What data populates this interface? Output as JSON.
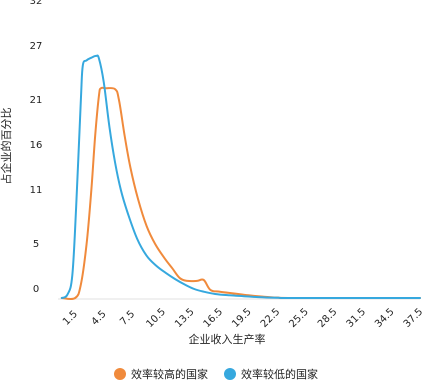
{
  "chart_data": {
    "type": "line",
    "title": "",
    "xlabel": "企业收入生产率",
    "ylabel": "占企业的百分比",
    "x_ticks": [
      "1.5",
      "4.5",
      "7.5",
      "10.5",
      "13.5",
      "16.5",
      "19.5",
      "22.5",
      "25.5",
      "28.5",
      "31.5",
      "34.5",
      "37.5"
    ],
    "y_ticks": [
      "0",
      "5",
      "11",
      "16",
      "21",
      "27",
      "32"
    ],
    "xlim": [
      0,
      38
    ],
    "ylim": [
      0,
      32
    ],
    "grid": false,
    "legend_position": "bottom",
    "series": [
      {
        "name": "效率较高的国家",
        "color": "#f08a3c",
        "points": [
          [
            0.4,
            0
          ],
          [
            1.8,
            0
          ],
          [
            2.4,
            1.5
          ],
          [
            3.0,
            6
          ],
          [
            3.5,
            12
          ],
          [
            3.9,
            18
          ],
          [
            4.3,
            22.5
          ],
          [
            4.5,
            23.3
          ],
          [
            5.0,
            23.3
          ],
          [
            6.0,
            23.2
          ],
          [
            6.4,
            22
          ],
          [
            7.0,
            18
          ],
          [
            7.6,
            14.5
          ],
          [
            8.4,
            11
          ],
          [
            9.3,
            8
          ],
          [
            10.2,
            6
          ],
          [
            11.2,
            4.4
          ],
          [
            12.0,
            3.3
          ],
          [
            12.8,
            2.2
          ],
          [
            13.6,
            1.9
          ],
          [
            14.6,
            1.9
          ],
          [
            15.3,
            2.0
          ],
          [
            16.0,
            0.9
          ],
          [
            17.0,
            0.7
          ],
          [
            18.5,
            0.5
          ],
          [
            20.0,
            0.3
          ],
          [
            21.5,
            0.15
          ],
          [
            23.0,
            0.05
          ],
          [
            25.0,
            0
          ],
          [
            38,
            0
          ]
        ]
      },
      {
        "name": "效率较低的国家",
        "color": "#36a8de",
        "points": [
          [
            0.4,
            0
          ],
          [
            1.0,
            0.4
          ],
          [
            1.5,
            2.5
          ],
          [
            1.9,
            10
          ],
          [
            2.4,
            22
          ],
          [
            2.6,
            25.8
          ],
          [
            3.0,
            26.4
          ],
          [
            3.5,
            26.7
          ],
          [
            4.0,
            26.9
          ],
          [
            4.3,
            26.6
          ],
          [
            4.8,
            24
          ],
          [
            5.4,
            19
          ],
          [
            6.0,
            15
          ],
          [
            6.6,
            12
          ],
          [
            7.3,
            9.5
          ],
          [
            8.3,
            6.6
          ],
          [
            9.3,
            4.7
          ],
          [
            10.3,
            3.6
          ],
          [
            11.3,
            2.8
          ],
          [
            12.3,
            2.1
          ],
          [
            13.3,
            1.5
          ],
          [
            14.3,
            1.0
          ],
          [
            15.3,
            0.7
          ],
          [
            16.5,
            0.45
          ],
          [
            18.0,
            0.3
          ],
          [
            19.5,
            0.2
          ],
          [
            21.0,
            0.1
          ],
          [
            23.0,
            0.03
          ],
          [
            25.0,
            0
          ],
          [
            38,
            0
          ]
        ]
      }
    ]
  }
}
